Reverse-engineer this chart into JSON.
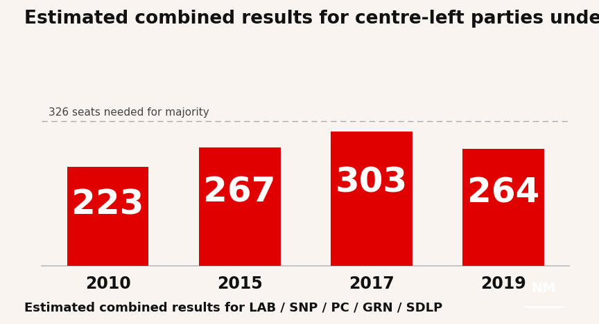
{
  "title": "Estimated combined results for centre-left parties under PR",
  "categories": [
    "2010",
    "2015",
    "2017",
    "2019"
  ],
  "values": [
    223,
    267,
    303,
    264
  ],
  "bar_color": "#e00000",
  "background_color": "#f9f4ef",
  "majority_line": 326,
  "majority_label": "326 seats needed for majority",
  "footer_text": "Estimated combined results for LAB / SNP / PC / GRN / SDLP",
  "title_fontsize": 19,
  "label_fontsize": 36,
  "xlabel_fontsize": 17,
  "footer_fontsize": 13,
  "majority_fontsize": 11,
  "ylim_max": 380,
  "bar_width": 0.62,
  "logo_bg": "#111111",
  "logo_text_color": "#ffffff",
  "axis_line_color": "#bbbbbb",
  "majority_line_color": "#aaaaaa",
  "text_color": "#111111",
  "majority_text_color": "#444444"
}
